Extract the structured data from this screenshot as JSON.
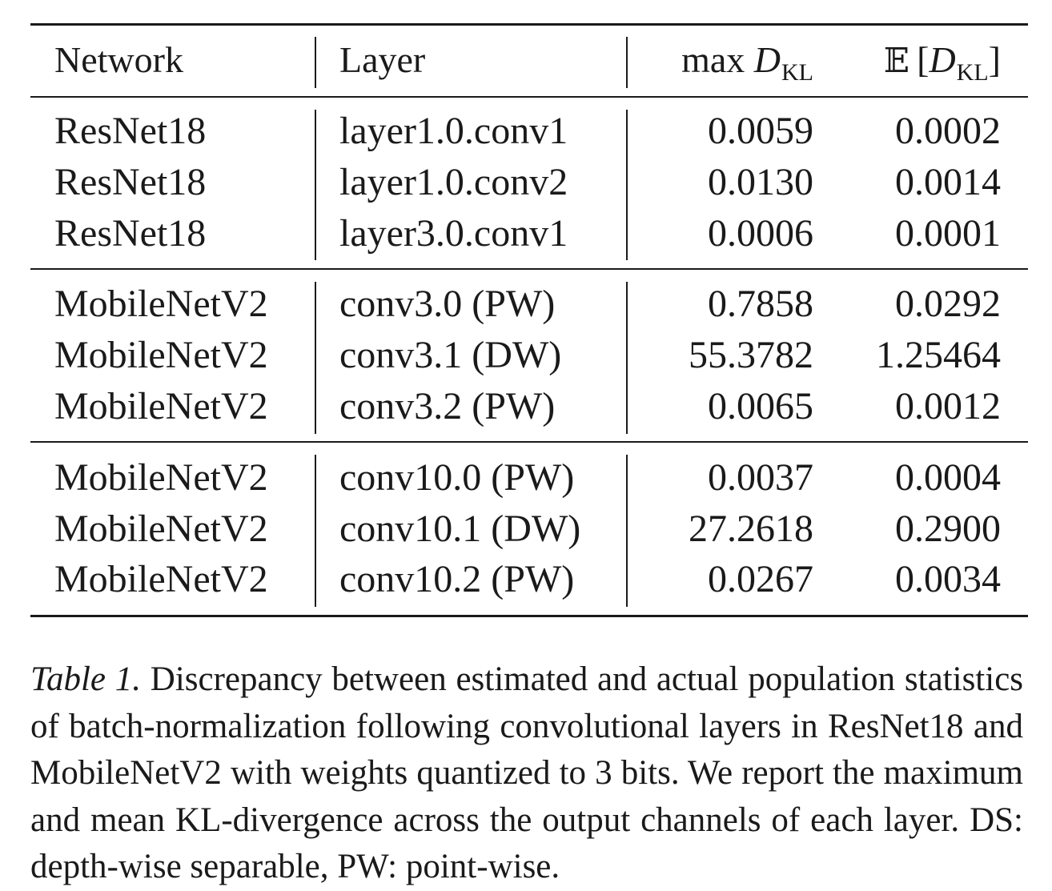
{
  "table": {
    "headers": {
      "network": "Network",
      "layer": "Layer",
      "max_prefix": "max",
      "mean_prefix": "𝔼",
      "d_symbol": "D",
      "kl_subscript": "KL"
    },
    "groups": [
      {
        "rows": [
          {
            "network": "ResNet18",
            "layer": "layer1.0.conv1",
            "max_dkl": "0.0059",
            "mean_dkl": "0.0002"
          },
          {
            "network": "ResNet18",
            "layer": "layer1.0.conv2",
            "max_dkl": "0.0130",
            "mean_dkl": "0.0014"
          },
          {
            "network": "ResNet18",
            "layer": "layer3.0.conv1",
            "max_dkl": "0.0006",
            "mean_dkl": "0.0001"
          }
        ]
      },
      {
        "rows": [
          {
            "network": "MobileNetV2",
            "layer": "conv3.0 (PW)",
            "max_dkl": "0.7858",
            "mean_dkl": "0.0292"
          },
          {
            "network": "MobileNetV2",
            "layer": "conv3.1 (DW)",
            "max_dkl": "55.3782",
            "mean_dkl": "1.25464"
          },
          {
            "network": "MobileNetV2",
            "layer": "conv3.2 (PW)",
            "max_dkl": "0.0065",
            "mean_dkl": "0.0012"
          }
        ]
      },
      {
        "rows": [
          {
            "network": "MobileNetV2",
            "layer": "conv10.0 (PW)",
            "max_dkl": "0.0037",
            "mean_dkl": "0.0004"
          },
          {
            "network": "MobileNetV2",
            "layer": "conv10.1 (DW)",
            "max_dkl": "27.2618",
            "mean_dkl": "0.2900"
          },
          {
            "network": "MobileNetV2",
            "layer": "conv10.2 (PW)",
            "max_dkl": "0.0267",
            "mean_dkl": "0.0034"
          }
        ]
      }
    ]
  },
  "caption": {
    "label": "Table 1.",
    "text": "Discrepancy between estimated and actual population statistics of batch-normalization following convolutional layers in ResNet18 and MobileNetV2 with weights quantized to 3 bits. We report the maximum and mean KL-divergence across the output channels of each layer. DS: depth-wise separable, PW: point-wise."
  }
}
